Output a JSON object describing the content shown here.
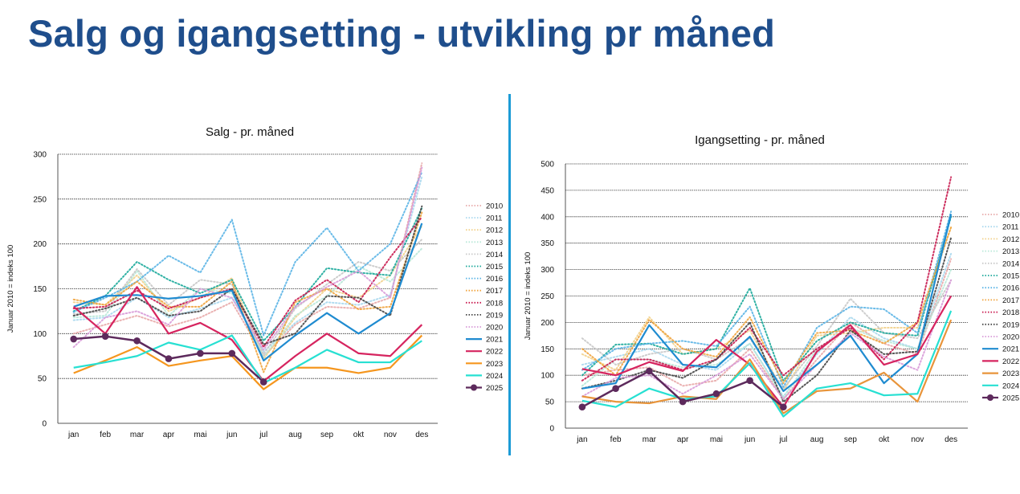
{
  "page": {
    "title": "Salg og igangsetting - utvikling pr måned"
  },
  "chart_data": [
    {
      "id": "salg",
      "type": "line",
      "title": "Salg - pr. måned",
      "xlabel": "",
      "ylabel": "Januar 2010 = indeks 100",
      "categories": [
        "jan",
        "feb",
        "mar",
        "apr",
        "mai",
        "jun",
        "jul",
        "aug",
        "sep",
        "okt",
        "nov",
        "des"
      ],
      "ylim": [
        0,
        300
      ],
      "yticks": [
        0,
        50,
        100,
        150,
        200,
        250,
        300
      ],
      "grid": true,
      "legend_position": "right",
      "series": [
        {
          "name": "2010",
          "color": "#e8a9a9",
          "style": "dotted",
          "values": [
            100,
            110,
            120,
            108,
            118,
            135,
            75,
            110,
            130,
            128,
            140,
            290
          ]
        },
        {
          "name": "2011",
          "color": "#a8d8ee",
          "style": "dotted",
          "values": [
            115,
            118,
            140,
            118,
            128,
            140,
            80,
            112,
            135,
            132,
            143,
            275
          ]
        },
        {
          "name": "2012",
          "color": "#f2d08a",
          "style": "dotted",
          "values": [
            135,
            132,
            165,
            125,
            140,
            162,
            72,
            118,
            150,
            140,
            165,
            220
          ]
        },
        {
          "name": "2013",
          "color": "#b8e8d8",
          "style": "dotted",
          "values": [
            118,
            120,
            170,
            120,
            150,
            145,
            74,
            120,
            142,
            175,
            158,
            195
          ]
        },
        {
          "name": "2014",
          "color": "#c8c8c8",
          "style": "dotted",
          "values": [
            122,
            125,
            172,
            132,
            160,
            155,
            77,
            128,
            155,
            180,
            170,
            205
          ]
        },
        {
          "name": "2015",
          "color": "#1aa89a",
          "style": "dotted",
          "values": [
            125,
            142,
            180,
            160,
            145,
            160,
            92,
            130,
            173,
            168,
            165,
            240
          ]
        },
        {
          "name": "2016",
          "color": "#5ab4e6",
          "style": "dotted",
          "values": [
            124,
            140,
            158,
            187,
            168,
            227,
            98,
            180,
            218,
            170,
            200,
            280
          ]
        },
        {
          "name": "2017",
          "color": "#f0a33c",
          "style": "dotted",
          "values": [
            138,
            132,
            158,
            130,
            130,
            158,
            57,
            135,
            150,
            127,
            130,
            235
          ]
        },
        {
          "name": "2018",
          "color": "#c8184e",
          "style": "dotted",
          "values": [
            128,
            130,
            148,
            128,
            140,
            150,
            85,
            137,
            160,
            135,
            185,
            230
          ]
        },
        {
          "name": "2019",
          "color": "#444444",
          "style": "dotted",
          "values": [
            120,
            128,
            140,
            120,
            125,
            150,
            88,
            100,
            142,
            140,
            120,
            242
          ]
        },
        {
          "name": "2020",
          "color": "#d89ad8",
          "style": "dotted",
          "values": [
            85,
            118,
            125,
            110,
            150,
            140,
            82,
            130,
            152,
            170,
            140,
            285
          ]
        },
        {
          "name": "2021",
          "color": "#1f8bd0",
          "style": "solid",
          "values": [
            130,
            142,
            143,
            139,
            142,
            148,
            70,
            98,
            123,
            100,
            123,
            223
          ]
        },
        {
          "name": "2022",
          "color": "#d6245f",
          "style": "solid",
          "values": [
            130,
            100,
            152,
            100,
            112,
            93,
            47,
            75,
            100,
            78,
            75,
            110
          ]
        },
        {
          "name": "2023",
          "color": "#f5961e",
          "style": "solid",
          "values": [
            56,
            70,
            85,
            64,
            70,
            75,
            38,
            62,
            62,
            56,
            62,
            98
          ]
        },
        {
          "name": "2024",
          "color": "#27e0d2",
          "style": "solid",
          "values": [
            62,
            68,
            75,
            90,
            82,
            98,
            45,
            62,
            82,
            68,
            68,
            92
          ]
        },
        {
          "name": "2025",
          "color": "#5d2a5c",
          "style": "solid",
          "marker": true,
          "values": [
            94,
            97,
            92,
            72,
            78,
            78,
            46,
            null,
            null,
            null,
            null,
            null
          ]
        }
      ]
    },
    {
      "id": "igangsetting",
      "type": "line",
      "title": "Igangsetting - pr. måned",
      "xlabel": "",
      "ylabel": "Januar 2010 = indeks 100",
      "categories": [
        "jan",
        "feb",
        "mar",
        "apr",
        "mai",
        "jun",
        "jul",
        "aug",
        "sep",
        "okt",
        "nov",
        "des"
      ],
      "ylim": [
        0,
        500
      ],
      "yticks": [
        0,
        50,
        100,
        150,
        200,
        250,
        300,
        350,
        400,
        450,
        500
      ],
      "grid": true,
      "legend_position": "right",
      "series": [
        {
          "name": "2010",
          "color": "#e8a9a9",
          "style": "dotted",
          "values": [
            100,
            110,
            115,
            80,
            90,
            150,
            55,
            130,
            200,
            160,
            140,
            320
          ]
        },
        {
          "name": "2011",
          "color": "#a8d8ee",
          "style": "dotted",
          "values": [
            120,
            135,
            150,
            120,
            110,
            160,
            60,
            140,
            210,
            170,
            150,
            330
          ]
        },
        {
          "name": "2012",
          "color": "#f2d08a",
          "style": "dotted",
          "values": [
            140,
            110,
            210,
            140,
            150,
            185,
            70,
            175,
            180,
            190,
            190,
            380
          ]
        },
        {
          "name": "2013",
          "color": "#b8e8d8",
          "style": "dotted",
          "values": [
            80,
            130,
            130,
            115,
            120,
            160,
            58,
            150,
            190,
            165,
            150,
            300
          ]
        },
        {
          "name": "2014",
          "color": "#c8c8c8",
          "style": "dotted",
          "values": [
            170,
            120,
            140,
            150,
            130,
            170,
            75,
            155,
            245,
            180,
            170,
            280
          ]
        },
        {
          "name": "2015",
          "color": "#1aa89a",
          "style": "dotted",
          "values": [
            100,
            158,
            160,
            140,
            150,
            265,
            90,
            165,
            200,
            180,
            175,
            400
          ]
        },
        {
          "name": "2016",
          "color": "#5ab4e6",
          "style": "dotted",
          "values": [
            110,
            150,
            160,
            165,
            155,
            230,
            78,
            190,
            230,
            225,
            180,
            410
          ]
        },
        {
          "name": "2017",
          "color": "#f0a33c",
          "style": "dotted",
          "values": [
            150,
            100,
            205,
            150,
            135,
            210,
            85,
            180,
            185,
            160,
            200,
            380
          ]
        },
        {
          "name": "2018",
          "color": "#c8184e",
          "style": "dotted",
          "values": [
            90,
            130,
            130,
            110,
            130,
            190,
            100,
            150,
            190,
            130,
            200,
            475
          ]
        },
        {
          "name": "2019",
          "color": "#444444",
          "style": "dotted",
          "values": [
            75,
            90,
            110,
            95,
            130,
            200,
            50,
            100,
            185,
            140,
            145,
            360
          ]
        },
        {
          "name": "2020",
          "color": "#d89ad8",
          "style": "dotted",
          "values": [
            60,
            95,
            100,
            65,
            100,
            140,
            55,
            120,
            180,
            135,
            110,
            280
          ]
        },
        {
          "name": "2021",
          "color": "#1f8bd0",
          "style": "solid",
          "values": [
            75,
            85,
            195,
            120,
            115,
            173,
            70,
            120,
            175,
            85,
            140,
            405
          ]
        },
        {
          "name": "2022",
          "color": "#d6245f",
          "style": "solid",
          "values": [
            112,
            100,
            125,
            108,
            167,
            120,
            40,
            145,
            195,
            120,
            140,
            250
          ]
        },
        {
          "name": "2023",
          "color": "#e8943a",
          "style": "solid",
          "values": [
            60,
            50,
            47,
            60,
            55,
            130,
            28,
            70,
            75,
            105,
            50,
            205
          ]
        },
        {
          "name": "2024",
          "color": "#27e0d2",
          "style": "solid",
          "values": [
            52,
            40,
            75,
            55,
            60,
            123,
            22,
            75,
            85,
            62,
            65,
            222
          ]
        },
        {
          "name": "2025",
          "color": "#5d2a5c",
          "style": "solid",
          "marker": true,
          "values": [
            40,
            75,
            108,
            50,
            65,
            90,
            40,
            null,
            null,
            null,
            null,
            null
          ]
        }
      ]
    }
  ]
}
